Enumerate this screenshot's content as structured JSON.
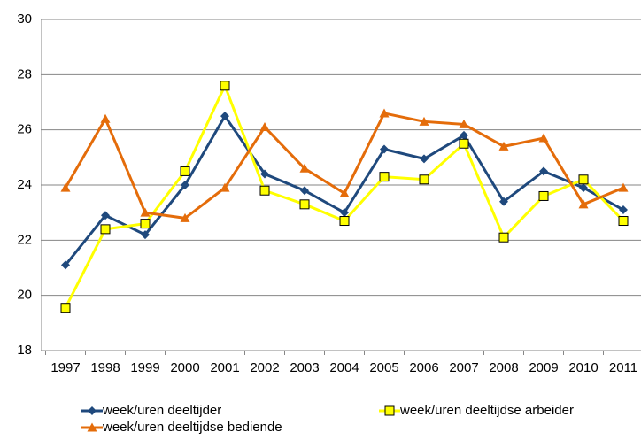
{
  "chart_data": {
    "type": "line",
    "categories": [
      "1997",
      "1998",
      "1999",
      "2000",
      "2001",
      "2002",
      "2003",
      "2004",
      "2005",
      "2006",
      "2007",
      "2008",
      "2009",
      "2010",
      "2011"
    ],
    "series": [
      {
        "name": "week/uren deeltijder",
        "color": "#1f497d",
        "marker": "diamond",
        "values": [
          21.1,
          22.9,
          22.2,
          24.0,
          26.5,
          24.4,
          23.8,
          23.0,
          25.3,
          24.95,
          25.8,
          23.4,
          24.5,
          23.9,
          23.1
        ]
      },
      {
        "name": "week/uren deeltijdse arbeider",
        "color": "#ffff00",
        "marker": "square",
        "values": [
          19.55,
          22.4,
          22.6,
          24.5,
          27.6,
          23.8,
          23.3,
          22.7,
          24.3,
          24.2,
          25.5,
          22.1,
          23.6,
          24.2,
          22.7
        ]
      },
      {
        "name": "week/uren deeltijdse bediende",
        "color": "#e46c0a",
        "marker": "triangle",
        "values": [
          23.9,
          26.4,
          23.0,
          22.8,
          23.9,
          26.1,
          24.6,
          23.7,
          26.6,
          26.3,
          26.2,
          25.4,
          25.7,
          23.3,
          23.9
        ]
      }
    ],
    "ylim": [
      18,
      30
    ],
    "yticks": [
      18,
      20,
      22,
      24,
      26,
      28,
      30
    ],
    "grid": true
  }
}
